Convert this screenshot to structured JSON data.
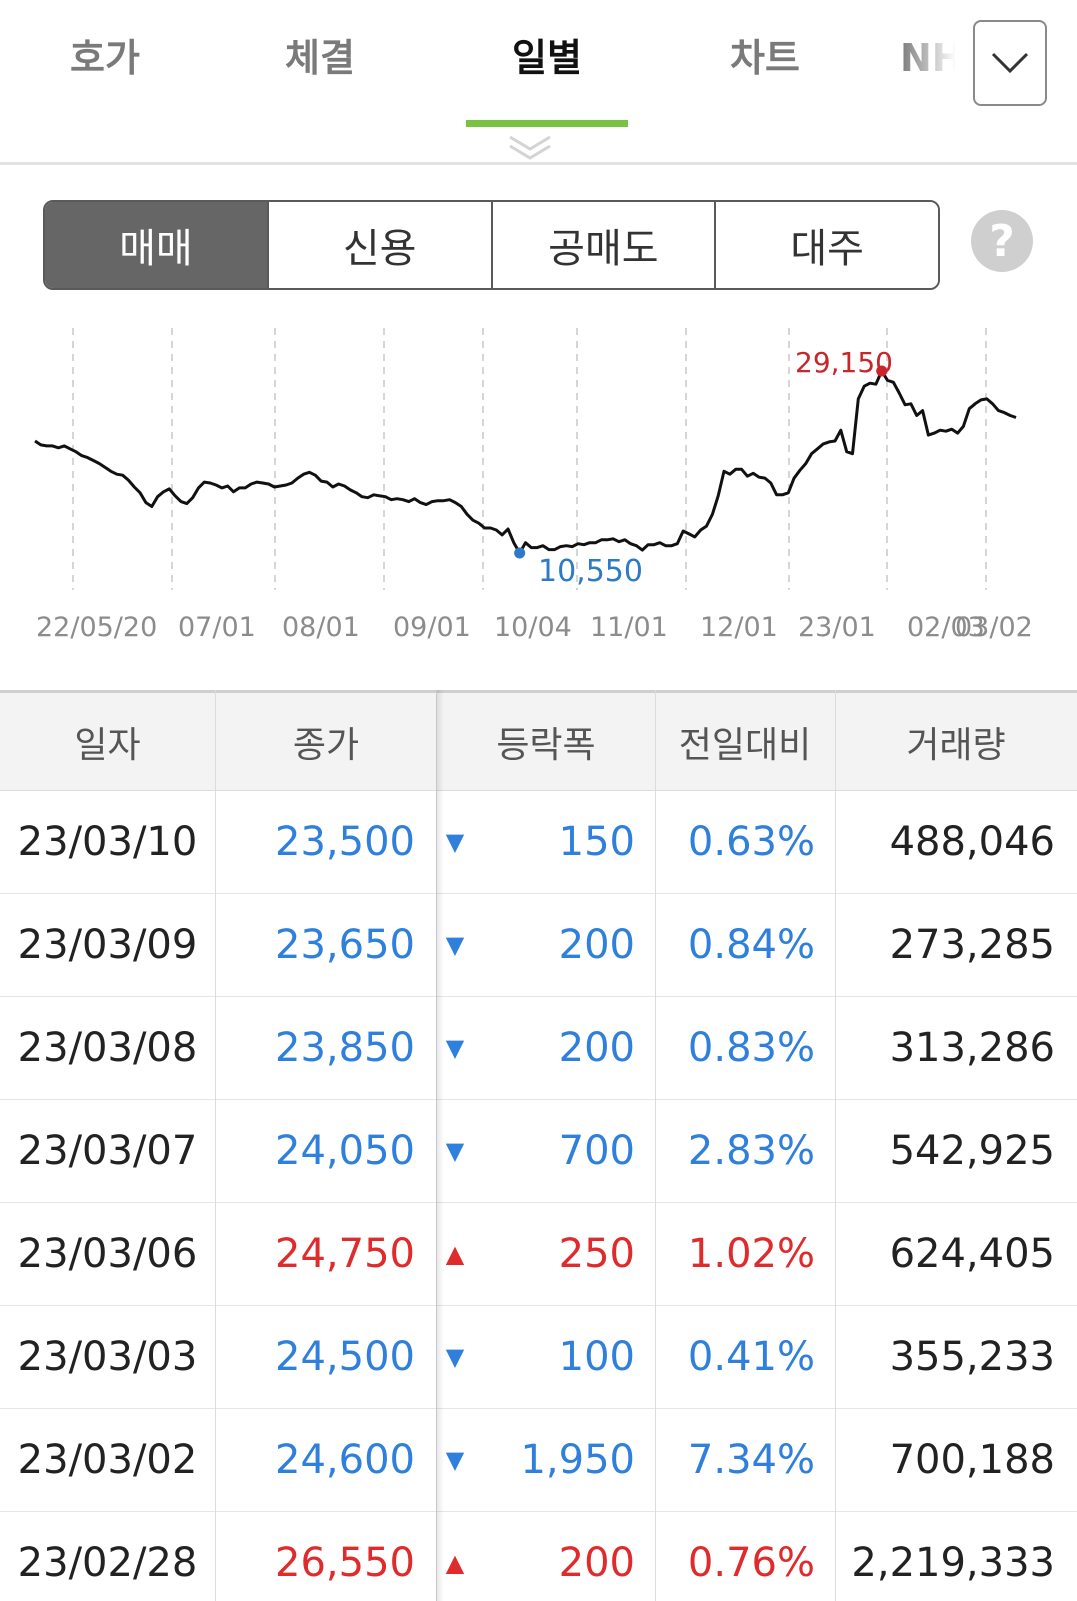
{
  "tabs": {
    "items": [
      {
        "label": "호가",
        "active": false
      },
      {
        "label": "체결",
        "active": false
      },
      {
        "label": "일별",
        "active": true
      },
      {
        "label": "차트",
        "active": false
      },
      {
        "label": "NH",
        "active": false
      }
    ],
    "accent_color": "#7cc242"
  },
  "segment": {
    "items": [
      {
        "label": "매매",
        "active": true
      },
      {
        "label": "신용",
        "active": false
      },
      {
        "label": "공매도",
        "active": false
      },
      {
        "label": "대주",
        "active": false
      }
    ],
    "help_label": "?"
  },
  "chart_data": {
    "type": "line",
    "x_ticks": [
      "22/05/20",
      "07/01",
      "08/01",
      "09/01",
      "10/04",
      "11/01",
      "12/01",
      "23/01",
      "02/03",
      "03/02"
    ],
    "max_label": "29,150",
    "min_label": "10,550",
    "max_value": 29150,
    "min_value": 10550,
    "series": [
      {
        "values": [
          22000,
          21600,
          21500,
          21500,
          21300,
          21500,
          21200,
          20900,
          20500,
          20300,
          20000,
          19700,
          19300,
          18900,
          18600,
          18500,
          18000,
          17300,
          16700,
          15700,
          15300,
          16300,
          16800,
          17100,
          16400,
          15800,
          15600,
          16200,
          17200,
          17800,
          17700,
          17500,
          17200,
          17400,
          16800,
          17200,
          17200,
          17600,
          17800,
          17700,
          17600,
          17300,
          17400,
          17500,
          17700,
          18200,
          18600,
          18800,
          18500,
          17900,
          17800,
          17300,
          17600,
          17400,
          17000,
          16700,
          16300,
          16200,
          16500,
          16400,
          16300,
          16000,
          16100,
          16000,
          15800,
          16100,
          15700,
          15500,
          15800,
          15900,
          15900,
          16000,
          15700,
          15300,
          14500,
          13900,
          13600,
          13100,
          13100,
          12900,
          12400,
          13000,
          11600,
          10550,
          11600,
          11100,
          11100,
          11300,
          10900,
          10900,
          11200,
          11300,
          11200,
          11500,
          11400,
          11600,
          11600,
          11900,
          11900,
          12000,
          11700,
          11900,
          11500,
          11300,
          10850,
          11400,
          11400,
          11600,
          11300,
          11300,
          11500,
          12800,
          12500,
          12200,
          12900,
          13300,
          14500,
          16400,
          18900,
          18600,
          19100,
          19100,
          18400,
          18700,
          18300,
          18200,
          17700,
          16500,
          16500,
          16700,
          18200,
          19000,
          19700,
          20700,
          21200,
          21700,
          21900,
          22000,
          23100,
          20900,
          20700,
          26300,
          27600,
          27900,
          27800,
          29150,
          28200,
          28000,
          26900,
          25700,
          25800,
          24600,
          25100,
          22600,
          22800,
          23100,
          23000,
          23200,
          22800,
          23500,
          25300,
          25800,
          26200,
          26300,
          25800,
          25100,
          24900,
          24600,
          24400
        ]
      }
    ],
    "grid": "vertical-dashed",
    "colors": {
      "line": "#111111",
      "max": "#c8262a",
      "min": "#2d7ac8"
    }
  },
  "table": {
    "headers": [
      "일자",
      "종가",
      "등락폭",
      "전일대비",
      "거래량"
    ],
    "rows": [
      {
        "date": "23/03/10",
        "close": "23,500",
        "arrow": "▼",
        "change": "150",
        "pct": "0.63%",
        "volume": "488,046",
        "dir": "down"
      },
      {
        "date": "23/03/09",
        "close": "23,650",
        "arrow": "▼",
        "change": "200",
        "pct": "0.84%",
        "volume": "273,285",
        "dir": "down"
      },
      {
        "date": "23/03/08",
        "close": "23,850",
        "arrow": "▼",
        "change": "200",
        "pct": "0.83%",
        "volume": "313,286",
        "dir": "down"
      },
      {
        "date": "23/03/07",
        "close": "24,050",
        "arrow": "▼",
        "change": "700",
        "pct": "2.83%",
        "volume": "542,925",
        "dir": "down"
      },
      {
        "date": "23/03/06",
        "close": "24,750",
        "arrow": "▲",
        "change": "250",
        "pct": "1.02%",
        "volume": "624,405",
        "dir": "up"
      },
      {
        "date": "23/03/03",
        "close": "24,500",
        "arrow": "▼",
        "change": "100",
        "pct": "0.41%",
        "volume": "355,233",
        "dir": "down"
      },
      {
        "date": "23/03/02",
        "close": "24,600",
        "arrow": "▼",
        "change": "1,950",
        "pct": "7.34%",
        "volume": "700,188",
        "dir": "down"
      },
      {
        "date": "23/02/28",
        "close": "26,550",
        "arrow": "▲",
        "change": "200",
        "pct": "0.76%",
        "volume": "2,219,333",
        "dir": "up"
      }
    ],
    "colors": {
      "up": "#df2b2b",
      "down": "#2f7fdc"
    }
  }
}
